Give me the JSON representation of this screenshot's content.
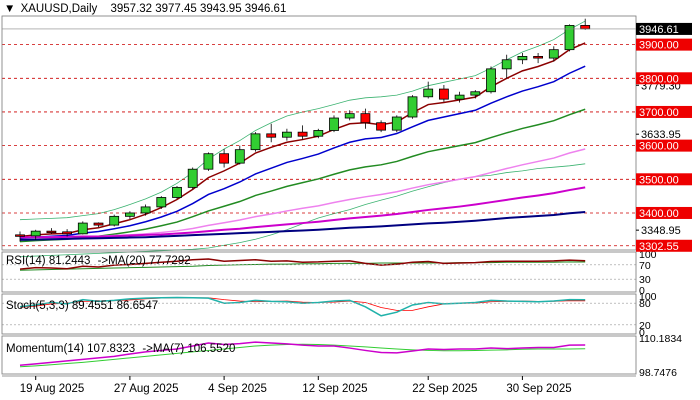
{
  "header": {
    "symbol": "XAUUSD,Daily",
    "ohlc": "3957.32 3977.45 3943.95 3946.61",
    "toggle_glyph": "▼"
  },
  "price_axis": {
    "current_price_tag": "3946.61",
    "red_tags": [
      "3900.00",
      "3800.00",
      "3700.00",
      "3600.00",
      "3500.00",
      "3400.00",
      "3302.55"
    ],
    "black_ticks": [
      "3779.30",
      "3633.95",
      "3348.95"
    ]
  },
  "rsi": {
    "label": "RSI(14) 81.2443",
    "ma_label": "->MA(20) 77.7292",
    "axis": [
      "100",
      "70",
      "30",
      "0"
    ]
  },
  "stoch": {
    "label": "Stoch(5,3,3) 89.4551 86.6547",
    "axis": [
      "100",
      "80",
      "20",
      "0"
    ]
  },
  "momentum": {
    "label": "Momentum(14) 107.8323",
    "ma_label": "->MA(7) 106.5520",
    "axis": [
      "110.1834",
      "98.7476"
    ]
  },
  "x_axis_labels": [
    "19 Aug 2025",
    "27 Aug 2025",
    "4 Sep 2025",
    "12 Sep 2025",
    "22 Sep 2025",
    "30 Sep 2025"
  ],
  "colors": {
    "bull": "#32cd32",
    "bear": "#ff0000",
    "ema5": "#8b0000",
    "ema10": "#0000cd",
    "ema20": "#228b22",
    "ema50": "#ee82ee",
    "ema100": "#cc00cc",
    "ema200": "#000080",
    "bollinger": "#3cb371",
    "level_line": "#cc0000",
    "rsi_line": "#8b0000",
    "rsi_ma": "#228b22",
    "stoch_main": "#20b2aa",
    "stoch_signal": "#ff0000",
    "mom_line": "#cc00cc",
    "mom_ma": "#32cd32"
  },
  "chart_data": {
    "type": "candlestick",
    "dates": [
      "2025-08-18",
      "2025-08-19",
      "2025-08-20",
      "2025-08-21",
      "2025-08-22",
      "2025-08-25",
      "2025-08-26",
      "2025-08-27",
      "2025-08-28",
      "2025-08-29",
      "2025-09-01",
      "2025-09-02",
      "2025-09-03",
      "2025-09-04",
      "2025-09-05",
      "2025-09-08",
      "2025-09-09",
      "2025-09-10",
      "2025-09-11",
      "2025-09-12",
      "2025-09-15",
      "2025-09-16",
      "2025-09-17",
      "2025-09-18",
      "2025-09-19",
      "2025-09-22",
      "2025-09-23",
      "2025-09-24",
      "2025-09-25",
      "2025-09-26",
      "2025-09-29",
      "2025-09-30",
      "2025-10-01",
      "2025-10-02",
      "2025-10-03",
      "2025-10-06",
      "2025-10-07"
    ],
    "ohlc": [
      [
        3335,
        3345,
        3315,
        3332
      ],
      [
        3332,
        3350,
        3320,
        3346
      ],
      [
        3346,
        3355,
        3338,
        3344
      ],
      [
        3344,
        3352,
        3330,
        3338
      ],
      [
        3338,
        3375,
        3336,
        3370
      ],
      [
        3370,
        3372,
        3358,
        3364
      ],
      [
        3364,
        3395,
        3360,
        3390
      ],
      [
        3390,
        3405,
        3382,
        3400
      ],
      [
        3400,
        3425,
        3392,
        3418
      ],
      [
        3418,
        3450,
        3412,
        3446
      ],
      [
        3446,
        3480,
        3442,
        3476
      ],
      [
        3476,
        3535,
        3470,
        3530
      ],
      [
        3530,
        3580,
        3525,
        3576
      ],
      [
        3576,
        3590,
        3535,
        3548
      ],
      [
        3548,
        3600,
        3544,
        3588
      ],
      [
        3588,
        3640,
        3582,
        3635
      ],
      [
        3635,
        3665,
        3610,
        3625
      ],
      [
        3625,
        3650,
        3615,
        3640
      ],
      [
        3640,
        3660,
        3618,
        3628
      ],
      [
        3628,
        3650,
        3622,
        3645
      ],
      [
        3645,
        3690,
        3640,
        3682
      ],
      [
        3682,
        3705,
        3675,
        3695
      ],
      [
        3695,
        3710,
        3650,
        3668
      ],
      [
        3668,
        3675,
        3640,
        3646
      ],
      [
        3646,
        3690,
        3640,
        3685
      ],
      [
        3685,
        3750,
        3680,
        3745
      ],
      [
        3745,
        3790,
        3740,
        3768
      ],
      [
        3768,
        3780,
        3730,
        3738
      ],
      [
        3738,
        3760,
        3728,
        3750
      ],
      [
        3750,
        3765,
        3740,
        3760
      ],
      [
        3760,
        3835,
        3755,
        3828
      ],
      [
        3828,
        3870,
        3800,
        3855
      ],
      [
        3855,
        3875,
        3842,
        3865
      ],
      [
        3865,
        3875,
        3845,
        3860
      ],
      [
        3860,
        3895,
        3850,
        3885
      ],
      [
        3885,
        3960,
        3880,
        3957
      ],
      [
        3957,
        3977,
        3944,
        3947
      ]
    ],
    "moving_averages": [
      {
        "name": "ema5",
        "values": [
          3330,
          3335,
          3338,
          3339,
          3350,
          3356,
          3368,
          3380,
          3396,
          3416,
          3440,
          3470,
          3505,
          3525,
          3548,
          3578,
          3595,
          3610,
          3618,
          3628,
          3648,
          3665,
          3668,
          3662,
          3670,
          3698,
          3722,
          3728,
          3736,
          3744,
          3775,
          3800,
          3822,
          3835,
          3852,
          3885,
          3905
        ]
      },
      {
        "name": "ema10",
        "values": [
          3325,
          3328,
          3331,
          3333,
          3340,
          3345,
          3353,
          3362,
          3374,
          3388,
          3405,
          3428,
          3455,
          3472,
          3492,
          3516,
          3533,
          3550,
          3562,
          3575,
          3593,
          3610,
          3620,
          3624,
          3636,
          3656,
          3675,
          3685,
          3695,
          3705,
          3726,
          3745,
          3762,
          3775,
          3790,
          3815,
          3836
        ]
      },
      {
        "name": "ema20",
        "values": [
          3315,
          3318,
          3320,
          3322,
          3328,
          3331,
          3337,
          3344,
          3352,
          3362,
          3373,
          3389,
          3406,
          3420,
          3434,
          3452,
          3465,
          3479,
          3490,
          3501,
          3515,
          3528,
          3537,
          3543,
          3553,
          3568,
          3582,
          3591,
          3600,
          3609,
          3624,
          3638,
          3651,
          3662,
          3674,
          3692,
          3708
        ]
      },
      {
        "name": "ema50",
        "values": [
          3328,
          3328,
          3329,
          3329,
          3330,
          3331,
          3333,
          3335,
          3338,
          3342,
          3347,
          3354,
          3363,
          3371,
          3379,
          3389,
          3397,
          3406,
          3414,
          3421,
          3431,
          3440,
          3448,
          3455,
          3463,
          3474,
          3484,
          3492,
          3500,
          3508,
          3520,
          3532,
          3543,
          3553,
          3563,
          3578,
          3590
        ]
      },
      {
        "name": "ema100",
        "values": [
          3328,
          3328,
          3328,
          3329,
          3330,
          3330,
          3331,
          3333,
          3335,
          3336,
          3339,
          3342,
          3346,
          3350,
          3353,
          3358,
          3362,
          3366,
          3370,
          3374,
          3379,
          3384,
          3388,
          3392,
          3397,
          3403,
          3409,
          3414,
          3419,
          3425,
          3432,
          3439,
          3446,
          3452,
          3459,
          3468,
          3476
        ]
      },
      {
        "name": "ema200",
        "values": [
          3320,
          3321,
          3322,
          3323,
          3324,
          3325,
          3326,
          3327,
          3328,
          3330,
          3332,
          3334,
          3336,
          3338,
          3340,
          3342,
          3344,
          3346,
          3348,
          3350,
          3353,
          3356,
          3358,
          3360,
          3363,
          3366,
          3369,
          3371,
          3374,
          3377,
          3381,
          3385,
          3388,
          3391,
          3394,
          3399,
          3403
        ]
      }
    ],
    "bollinger": {
      "upper": [
        3380,
        3382,
        3384,
        3386,
        3392,
        3398,
        3410,
        3425,
        3442,
        3462,
        3488,
        3520,
        3560,
        3590,
        3615,
        3645,
        3668,
        3688,
        3700,
        3710,
        3722,
        3735,
        3742,
        3745,
        3750,
        3762,
        3778,
        3788,
        3798,
        3808,
        3830,
        3855,
        3878,
        3895,
        3915,
        3945,
        3970
      ],
      "lower": [
        3270,
        3272,
        3274,
        3276,
        3278,
        3280,
        3282,
        3284,
        3286,
        3288,
        3290,
        3292,
        3296,
        3304,
        3312,
        3322,
        3335,
        3350,
        3368,
        3385,
        3398,
        3410,
        3425,
        3438,
        3450,
        3465,
        3478,
        3490,
        3500,
        3508,
        3512,
        3520,
        3525,
        3532,
        3536,
        3540,
        3546
      ]
    },
    "price_range": [
      3290,
      3985
    ],
    "rsi": {
      "range": [
        0,
        100
      ],
      "levels": [
        30,
        70
      ],
      "values": [
        58,
        62,
        61,
        59,
        66,
        64,
        69,
        71,
        74,
        77,
        80,
        84,
        86,
        80,
        82,
        84,
        80,
        81,
        77,
        78,
        80,
        81,
        74,
        69,
        72,
        77,
        79,
        74,
        75,
        76,
        79,
        80,
        80,
        80,
        81,
        83,
        81.2443
      ],
      "ma": [
        55,
        56,
        57,
        58,
        59,
        60,
        61,
        62,
        63,
        64,
        65,
        66,
        68,
        69,
        70,
        71,
        72,
        72,
        73,
        73,
        74,
        74,
        74,
        75,
        75,
        75,
        75,
        75,
        76,
        76,
        76,
        77,
        77,
        77,
        77,
        78,
        77.7292
      ]
    },
    "stoch": {
      "range": [
        0,
        100
      ],
      "levels": [
        20,
        80
      ],
      "main": [
        70,
        75,
        82,
        78,
        90,
        85,
        88,
        92,
        94,
        95,
        96,
        95,
        94,
        80,
        82,
        88,
        85,
        84,
        80,
        82,
        86,
        88,
        70,
        45,
        55,
        75,
        82,
        78,
        80,
        82,
        88,
        86,
        85,
        84,
        86,
        90,
        89.4551
      ],
      "signal": [
        68,
        72,
        78,
        80,
        85,
        86,
        87,
        89,
        92,
        94,
        95,
        95,
        95,
        90,
        86,
        84,
        85,
        86,
        83,
        82,
        83,
        86,
        82,
        68,
        60,
        60,
        70,
        78,
        80,
        80,
        84,
        85,
        86,
        85,
        85,
        87,
        86.6547
      ]
    },
    "momentum": {
      "range": [
        98.7476,
        110.1834
      ],
      "values": [
        101,
        101.5,
        102,
        102.5,
        103,
        103.5,
        104,
        104.8,
        105.5,
        106,
        106.5,
        107.5,
        108.5,
        108,
        108.3,
        108.8,
        108.5,
        108.2,
        107.8,
        107.5,
        107.5,
        106.8,
        106,
        105.3,
        105.2,
        105.8,
        106.5,
        106.3,
        106.5,
        106.5,
        106.8,
        106.6,
        106.8,
        107,
        107,
        107.8,
        107.8323
      ],
      "ma": [
        100.5,
        100.8,
        101.2,
        101.6,
        102,
        102.5,
        103,
        103.5,
        104,
        104.5,
        105,
        105.5,
        106,
        106.5,
        107,
        107.5,
        107.8,
        108,
        108.1,
        108,
        107.8,
        107.5,
        107.2,
        106.8,
        106.5,
        106.2,
        106,
        105.9,
        105.9,
        106,
        106.1,
        106.2,
        106.4,
        106.5,
        106.5,
        106.5,
        106.552
      ]
    }
  }
}
